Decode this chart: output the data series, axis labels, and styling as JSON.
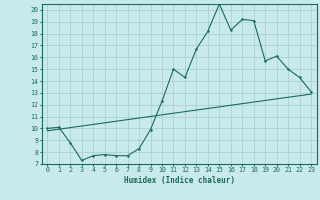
{
  "title": "",
  "xlabel": "Humidex (Indice chaleur)",
  "bg_color": "#c8eaea",
  "line_color": "#1a6b5a",
  "grid_color": "#a8cccc",
  "xlim": [
    -0.5,
    23.5
  ],
  "ylim": [
    7,
    20.5
  ],
  "xticks": [
    0,
    1,
    2,
    3,
    4,
    5,
    6,
    7,
    8,
    9,
    10,
    11,
    12,
    13,
    14,
    15,
    16,
    17,
    18,
    19,
    20,
    21,
    22,
    23
  ],
  "yticks": [
    7,
    8,
    9,
    10,
    11,
    12,
    13,
    14,
    15,
    16,
    17,
    18,
    19,
    20
  ],
  "curve1_x": [
    0,
    1,
    2,
    3,
    4,
    5,
    6,
    7,
    8,
    9,
    10,
    11,
    12,
    13,
    14,
    15,
    16,
    17,
    18,
    19,
    20,
    21,
    22,
    23
  ],
  "curve1_y": [
    10.0,
    10.1,
    8.8,
    7.3,
    7.7,
    7.8,
    7.7,
    7.7,
    8.3,
    9.9,
    12.3,
    15.0,
    14.3,
    16.7,
    18.2,
    20.5,
    18.3,
    19.2,
    19.1,
    15.7,
    16.1,
    15.0,
    14.3,
    13.1
  ],
  "curve2_x": [
    0,
    23
  ],
  "curve2_y": [
    9.8,
    12.9
  ],
  "xlabel_fontsize": 5.5,
  "tick_fontsize": 4.8
}
